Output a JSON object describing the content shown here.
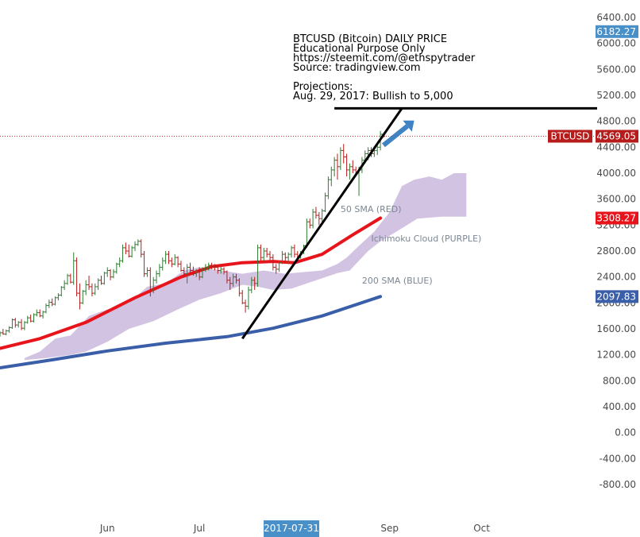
{
  "colors": {
    "candle_up": "#2e7d32",
    "candle_down": "#b71c1c",
    "sma50": "#e8141b",
    "sma200": "#3a5ea8",
    "cloud": "#cbb8dd",
    "trend": "#000000",
    "arrow": "#3f83c4",
    "price_line": "#c0392b",
    "badge_cloud": "#d77dd4",
    "badge_date": "#4a90c8"
  },
  "annotation": {
    "line1": "BTCUSD (Bitcoin) DAILY PRICE",
    "line2": "Educational Purpose Only",
    "line3": "https://steemit.com/@ethspytrader",
    "line4": "Source: tradingview.com",
    "line5": "Projections:",
    "line6": "Aug. 29, 2017: Bullish to 5,000"
  },
  "chart_data": {
    "type": "line",
    "y_axis_position": "right",
    "ylim": [
      -850,
      6450
    ],
    "y_ticks": [
      "6400.00",
      "6000.00",
      "5600.00",
      "5200.00",
      "4800.00",
      "4400.00",
      "4000.00",
      "3600.00",
      "3200.00",
      "2800.00",
      "2400.00",
      "2000.00",
      "1600.00",
      "1200.00",
      "800.00",
      "400.00",
      "0.00",
      "-400.00",
      "-800.00"
    ],
    "x_ticks": [
      "Jun",
      "Jul",
      "Sep",
      "Oct"
    ],
    "x_range": [
      "2017-04-27",
      "2017-10-20"
    ],
    "x_tick_dates": [
      "2017-06-01",
      "2017-07-01",
      "2017-09-01",
      "2017-10-01"
    ],
    "date_badge": {
      "label": "2017-07-31",
      "date": "2017-07-31"
    },
    "price_badges": [
      {
        "label": "6182.27",
        "value": 6182.27,
        "color_key": "badge_date"
      },
      {
        "label": "BTCUSD",
        "value": 4569.05,
        "color_key": "candle_down",
        "kind": "name"
      },
      {
        "label": "4569.05",
        "value": 4569.05,
        "color_key": "candle_down"
      },
      {
        "label": "3308.27",
        "value": 3308.27,
        "color_key": "sma50"
      },
      {
        "label": "2097.83",
        "value": 2097.83,
        "color_key": "sma200"
      }
    ],
    "last_price": 4569.05,
    "projection_level": 5000,
    "trend_line": [
      [
        "2017-07-15",
        1450
      ],
      [
        "2017-09-05",
        5000
      ]
    ],
    "arrow": [
      [
        "2017-08-30",
        4430
      ],
      [
        "2017-09-09",
        4810
      ]
    ],
    "labels": [
      {
        "text": "50 SMA (RED)",
        "date": "2017-08-16",
        "value": 3400
      },
      {
        "text": "Ichimoku Cloud (PURPLE)",
        "date": "2017-08-26",
        "value": 2950
      },
      {
        "text": "200 SMA (BLUE)",
        "date": "2017-08-23",
        "value": 2300
      }
    ],
    "sma50": {
      "name": "50 SMA (RED)",
      "points": [
        [
          "2017-04-27",
          1300
        ],
        [
          "2017-05-10",
          1450
        ],
        [
          "2017-05-25",
          1700
        ],
        [
          "2017-06-10",
          2080
        ],
        [
          "2017-06-25",
          2400
        ],
        [
          "2017-07-05",
          2560
        ],
        [
          "2017-07-15",
          2620
        ],
        [
          "2017-07-25",
          2640
        ],
        [
          "2017-08-01",
          2620
        ],
        [
          "2017-08-10",
          2750
        ],
        [
          "2017-08-20",
          3050
        ],
        [
          "2017-08-29",
          3308
        ]
      ]
    },
    "sma200": {
      "name": "200 SMA (BLUE)",
      "points": [
        [
          "2017-04-27",
          1000
        ],
        [
          "2017-05-15",
          1130
        ],
        [
          "2017-06-01",
          1260
        ],
        [
          "2017-06-20",
          1380
        ],
        [
          "2017-07-10",
          1480
        ],
        [
          "2017-07-25",
          1610
        ],
        [
          "2017-08-10",
          1800
        ],
        [
          "2017-08-29",
          2098
        ]
      ]
    },
    "cloud": {
      "name": "Ichimoku Cloud (PURPLE)",
      "upper": [
        [
          "2017-05-05",
          1150
        ],
        [
          "2017-05-10",
          1250
        ],
        [
          "2017-05-15",
          1450
        ],
        [
          "2017-05-20",
          1500
        ],
        [
          "2017-05-26",
          1800
        ],
        [
          "2017-06-01",
          1900
        ],
        [
          "2017-06-08",
          2000
        ],
        [
          "2017-06-14",
          2250
        ],
        [
          "2017-06-20",
          2300
        ],
        [
          "2017-06-26",
          2500
        ],
        [
          "2017-07-01",
          2550
        ],
        [
          "2017-07-08",
          2500
        ],
        [
          "2017-07-15",
          2450
        ],
        [
          "2017-07-22",
          2500
        ],
        [
          "2017-07-29",
          2450
        ],
        [
          "2017-08-05",
          2480
        ],
        [
          "2017-08-10",
          2500
        ],
        [
          "2017-08-15",
          2600
        ],
        [
          "2017-08-18",
          2700
        ],
        [
          "2017-08-22",
          2880
        ],
        [
          "2017-08-27",
          3100
        ],
        [
          "2017-09-01",
          3400
        ],
        [
          "2017-09-05",
          3800
        ],
        [
          "2017-09-09",
          3900
        ],
        [
          "2017-09-14",
          3950
        ],
        [
          "2017-09-18",
          3900
        ],
        [
          "2017-09-22",
          4000
        ],
        [
          "2017-09-26",
          4000
        ]
      ],
      "lower": [
        [
          "2017-09-26",
          3330
        ],
        [
          "2017-09-18",
          3330
        ],
        [
          "2017-09-10",
          3300
        ],
        [
          "2017-09-05",
          3150
        ],
        [
          "2017-08-29",
          2950
        ],
        [
          "2017-08-25",
          2800
        ],
        [
          "2017-08-21",
          2600
        ],
        [
          "2017-08-19",
          2500
        ],
        [
          "2017-08-15",
          2460
        ],
        [
          "2017-08-10",
          2380
        ],
        [
          "2017-08-05",
          2300
        ],
        [
          "2017-07-31",
          2220
        ],
        [
          "2017-07-25",
          2200
        ],
        [
          "2017-07-20",
          2250
        ],
        [
          "2017-07-15",
          2280
        ],
        [
          "2017-07-08",
          2150
        ],
        [
          "2017-07-01",
          2050
        ],
        [
          "2017-06-24",
          1900
        ],
        [
          "2017-06-16",
          1720
        ],
        [
          "2017-06-08",
          1600
        ],
        [
          "2017-06-01",
          1400
        ],
        [
          "2017-05-25",
          1250
        ],
        [
          "2017-05-20",
          1200
        ],
        [
          "2017-05-12",
          1150
        ],
        [
          "2017-05-05",
          1120
        ]
      ]
    },
    "ohlc": [
      [
        "2017-04-27",
        1500,
        1560,
        1480,
        1540
      ],
      [
        "2017-04-28",
        1540,
        1600,
        1510,
        1520
      ],
      [
        "2017-04-29",
        1520,
        1590,
        1500,
        1570
      ],
      [
        "2017-04-30",
        1570,
        1640,
        1540,
        1620
      ],
      [
        "2017-05-01",
        1620,
        1760,
        1600,
        1740
      ],
      [
        "2017-05-02",
        1740,
        1770,
        1620,
        1660
      ],
      [
        "2017-05-03",
        1660,
        1720,
        1620,
        1700
      ],
      [
        "2017-05-04",
        1700,
        1750,
        1580,
        1610
      ],
      [
        "2017-05-05",
        1610,
        1720,
        1580,
        1700
      ],
      [
        "2017-05-06",
        1700,
        1800,
        1680,
        1770
      ],
      [
        "2017-05-07",
        1770,
        1820,
        1700,
        1720
      ],
      [
        "2017-05-08",
        1720,
        1840,
        1700,
        1820
      ],
      [
        "2017-05-09",
        1820,
        1900,
        1790,
        1850
      ],
      [
        "2017-05-10",
        1850,
        1900,
        1780,
        1800
      ],
      [
        "2017-05-11",
        1800,
        1880,
        1760,
        1860
      ],
      [
        "2017-05-12",
        1860,
        1990,
        1840,
        1960
      ],
      [
        "2017-05-13",
        1960,
        2050,
        1920,
        2010
      ],
      [
        "2017-05-14",
        2010,
        2070,
        1950,
        1980
      ],
      [
        "2017-05-15",
        1980,
        2100,
        1960,
        2080
      ],
      [
        "2017-05-16",
        2080,
        2150,
        2040,
        2120
      ],
      [
        "2017-05-17",
        2120,
        2260,
        2100,
        2240
      ],
      [
        "2017-05-18",
        2240,
        2350,
        2200,
        2300
      ],
      [
        "2017-05-19",
        2300,
        2450,
        2280,
        2420
      ],
      [
        "2017-05-20",
        2420,
        2450,
        2300,
        2320
      ],
      [
        "2017-05-21",
        2320,
        2780,
        2280,
        2650
      ],
      [
        "2017-05-22",
        2650,
        2700,
        2100,
        2150
      ],
      [
        "2017-05-23",
        2150,
        2300,
        1900,
        2000
      ],
      [
        "2017-05-24",
        2000,
        2200,
        1980,
        2180
      ],
      [
        "2017-05-25",
        2180,
        2350,
        2120,
        2280
      ],
      [
        "2017-05-26",
        2280,
        2420,
        2200,
        2250
      ],
      [
        "2017-05-27",
        2250,
        2300,
        2100,
        2150
      ],
      [
        "2017-05-28",
        2150,
        2300,
        2120,
        2250
      ],
      [
        "2017-05-29",
        2250,
        2380,
        2200,
        2350
      ],
      [
        "2017-05-30",
        2350,
        2420,
        2280,
        2300
      ],
      [
        "2017-05-31",
        2300,
        2480,
        2280,
        2460
      ],
      [
        "2017-06-01",
        2460,
        2550,
        2400,
        2500
      ],
      [
        "2017-06-02",
        2500,
        2520,
        2350,
        2400
      ],
      [
        "2017-06-03",
        2400,
        2520,
        2380,
        2480
      ],
      [
        "2017-06-04",
        2480,
        2620,
        2450,
        2600
      ],
      [
        "2017-06-05",
        2600,
        2700,
        2550,
        2650
      ],
      [
        "2017-06-06",
        2650,
        2900,
        2620,
        2850
      ],
      [
        "2017-06-07",
        2850,
        2930,
        2750,
        2800
      ],
      [
        "2017-06-08",
        2800,
        2900,
        2700,
        2720
      ],
      [
        "2017-06-09",
        2720,
        2880,
        2700,
        2850
      ],
      [
        "2017-06-10",
        2850,
        2950,
        2800,
        2900
      ],
      [
        "2017-06-11",
        2900,
        2980,
        2880,
        2950
      ],
      [
        "2017-06-12",
        2950,
        2980,
        2700,
        2750
      ],
      [
        "2017-06-13",
        2750,
        2800,
        2400,
        2450
      ],
      [
        "2017-06-14",
        2450,
        2550,
        2400,
        2500
      ],
      [
        "2017-06-15",
        2500,
        2550,
        2100,
        2200
      ],
      [
        "2017-06-16",
        2200,
        2400,
        2150,
        2350
      ],
      [
        "2017-06-17",
        2350,
        2500,
        2300,
        2450
      ],
      [
        "2017-06-18",
        2450,
        2600,
        2400,
        2550
      ],
      [
        "2017-06-19",
        2550,
        2700,
        2500,
        2650
      ],
      [
        "2017-06-20",
        2650,
        2800,
        2600,
        2750
      ],
      [
        "2017-06-21",
        2750,
        2800,
        2600,
        2650
      ],
      [
        "2017-06-22",
        2650,
        2700,
        2550,
        2600
      ],
      [
        "2017-06-23",
        2600,
        2750,
        2580,
        2700
      ],
      [
        "2017-06-24",
        2700,
        2720,
        2550,
        2600
      ],
      [
        "2017-06-25",
        2600,
        2650,
        2480,
        2500
      ],
      [
        "2017-06-26",
        2500,
        2550,
        2400,
        2450
      ],
      [
        "2017-06-27",
        2450,
        2600,
        2300,
        2550
      ],
      [
        "2017-06-28",
        2550,
        2620,
        2450,
        2500
      ],
      [
        "2017-06-29",
        2500,
        2560,
        2420,
        2450
      ],
      [
        "2017-06-30",
        2450,
        2520,
        2400,
        2480
      ],
      [
        "2017-07-01",
        2480,
        2550,
        2350,
        2400
      ],
      [
        "2017-07-02",
        2400,
        2550,
        2380,
        2520
      ],
      [
        "2017-07-03",
        2520,
        2600,
        2480,
        2550
      ],
      [
        "2017-07-04",
        2550,
        2620,
        2500,
        2580
      ],
      [
        "2017-07-05",
        2580,
        2620,
        2520,
        2560
      ],
      [
        "2017-07-06",
        2560,
        2600,
        2500,
        2550
      ],
      [
        "2017-07-07",
        2550,
        2580,
        2450,
        2500
      ],
      [
        "2017-07-08",
        2500,
        2560,
        2450,
        2520
      ],
      [
        "2017-07-09",
        2520,
        2550,
        2440,
        2480
      ],
      [
        "2017-07-10",
        2480,
        2500,
        2300,
        2350
      ],
      [
        "2017-07-11",
        2350,
        2400,
        2200,
        2300
      ],
      [
        "2017-07-12",
        2300,
        2450,
        2250,
        2400
      ],
      [
        "2017-07-13",
        2400,
        2450,
        2300,
        2350
      ],
      [
        "2017-07-14",
        2350,
        2380,
        2100,
        2150
      ],
      [
        "2017-07-15",
        2150,
        2200,
        1980,
        2000
      ],
      [
        "2017-07-16",
        2000,
        2050,
        1850,
        1950
      ],
      [
        "2017-07-17",
        1950,
        2250,
        1900,
        2200
      ],
      [
        "2017-07-18",
        2200,
        2400,
        2150,
        2350
      ],
      [
        "2017-07-19",
        2350,
        2400,
        2200,
        2300
      ],
      [
        "2017-07-20",
        2300,
        2900,
        2250,
        2850
      ],
      [
        "2017-07-21",
        2850,
        2900,
        2650,
        2700
      ],
      [
        "2017-07-22",
        2700,
        2850,
        2650,
        2800
      ],
      [
        "2017-07-23",
        2800,
        2850,
        2700,
        2750
      ],
      [
        "2017-07-24",
        2750,
        2800,
        2650,
        2700
      ],
      [
        "2017-07-25",
        2700,
        2750,
        2500,
        2550
      ],
      [
        "2017-07-26",
        2550,
        2600,
        2450,
        2520
      ],
      [
        "2017-07-27",
        2520,
        2650,
        2480,
        2620
      ],
      [
        "2017-07-28",
        2620,
        2800,
        2600,
        2750
      ],
      [
        "2017-07-29",
        2750,
        2780,
        2650,
        2700
      ],
      [
        "2017-07-30",
        2700,
        2780,
        2600,
        2750
      ],
      [
        "2017-07-31",
        2750,
        2880,
        2700,
        2850
      ],
      [
        "2017-08-01",
        2850,
        2900,
        2700,
        2750
      ],
      [
        "2017-08-02",
        2750,
        2800,
        2650,
        2700
      ],
      [
        "2017-08-03",
        2700,
        2800,
        2680,
        2780
      ],
      [
        "2017-08-04",
        2780,
        2900,
        2750,
        2880
      ],
      [
        "2017-08-05",
        2880,
        3300,
        2850,
        3250
      ],
      [
        "2017-08-06",
        3250,
        3300,
        3150,
        3200
      ],
      [
        "2017-08-07",
        3200,
        3450,
        3150,
        3400
      ],
      [
        "2017-08-08",
        3400,
        3480,
        3300,
        3350
      ],
      [
        "2017-08-09",
        3350,
        3400,
        3200,
        3300
      ],
      [
        "2017-08-10",
        3300,
        3450,
        3250,
        3420
      ],
      [
        "2017-08-11",
        3420,
        3700,
        3400,
        3650
      ],
      [
        "2017-08-12",
        3650,
        3950,
        3600,
        3900
      ],
      [
        "2017-08-13",
        3900,
        4100,
        3800,
        4050
      ],
      [
        "2017-08-14",
        4050,
        4250,
        3950,
        4200
      ],
      [
        "2017-08-15",
        4200,
        4300,
        3900,
        4100
      ],
      [
        "2017-08-16",
        4100,
        4400,
        4050,
        4350
      ],
      [
        "2017-08-17",
        4350,
        4450,
        4150,
        4250
      ],
      [
        "2017-08-18",
        4250,
        4300,
        3950,
        4050
      ],
      [
        "2017-08-19",
        4050,
        4150,
        3900,
        4100
      ],
      [
        "2017-08-20",
        4100,
        4200,
        4000,
        4050
      ],
      [
        "2017-08-21",
        4050,
        4100,
        3950,
        4000
      ],
      [
        "2017-08-22",
        4000,
        4100,
        3650,
        4050
      ],
      [
        "2017-08-23",
        4050,
        4250,
        4000,
        4200
      ],
      [
        "2017-08-24",
        4200,
        4350,
        4150,
        4300
      ],
      [
        "2017-08-25",
        4300,
        4400,
        4200,
        4350
      ],
      [
        "2017-08-26",
        4350,
        4400,
        4250,
        4300
      ],
      [
        "2017-08-27",
        4300,
        4400,
        4250,
        4350
      ],
      [
        "2017-08-28",
        4350,
        4450,
        4280,
        4400
      ],
      [
        "2017-08-29",
        4400,
        4650,
        4350,
        4600
      ],
      [
        "2017-08-30",
        4600,
        4620,
        4550,
        4569
      ]
    ]
  }
}
